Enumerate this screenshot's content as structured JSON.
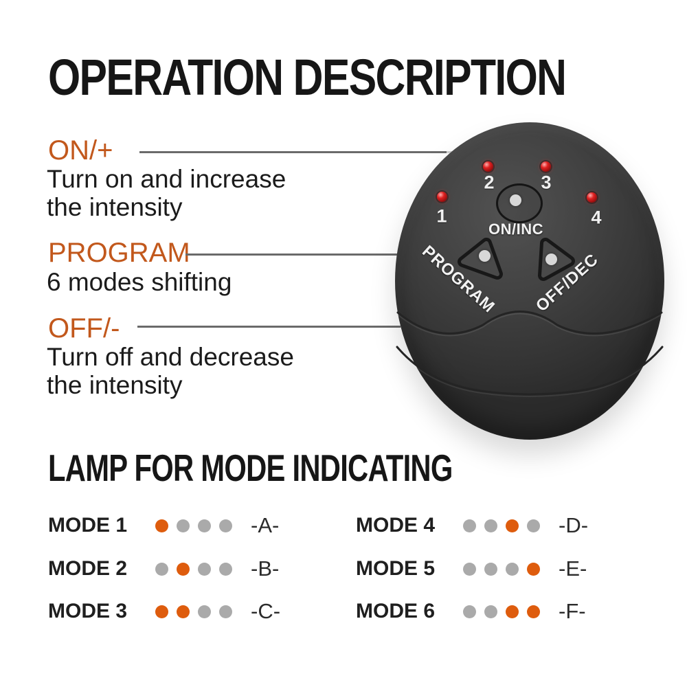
{
  "title": "OPERATION DESCRIPTION",
  "callouts": {
    "on": {
      "label": "ON/+",
      "line1": "Turn on and increase",
      "line2": "the intensity"
    },
    "program": {
      "label": "PROGRAM",
      "line1": "6 modes shifting"
    },
    "off": {
      "label": "OFF/-",
      "line1": "Turn off and decrease",
      "line2": "the intensity"
    }
  },
  "device": {
    "leds": [
      "1",
      "2",
      "3",
      "4"
    ],
    "on_button": "ON/INC",
    "program_button": "PROGRAM",
    "off_button": "OFF/DEC"
  },
  "lamp": {
    "title": "LAMP FOR MODE INDICATING",
    "modes": [
      {
        "name": "MODE 1",
        "dots": [
          "on",
          "off",
          "off",
          "off"
        ],
        "code": "-A-"
      },
      {
        "name": "MODE 2",
        "dots": [
          "off",
          "on",
          "off",
          "off"
        ],
        "code": "-B-"
      },
      {
        "name": "MODE 3",
        "dots": [
          "on",
          "on",
          "off",
          "off"
        ],
        "code": "-C-"
      },
      {
        "name": "MODE 4",
        "dots": [
          "off",
          "off",
          "on",
          "off"
        ],
        "code": "-D-"
      },
      {
        "name": "MODE 5",
        "dots": [
          "off",
          "off",
          "off",
          "on"
        ],
        "code": "-E-"
      },
      {
        "name": "MODE 6",
        "dots": [
          "off",
          "off",
          "on",
          "on"
        ],
        "code": "-F-"
      }
    ]
  },
  "colors": {
    "accent_orange": "#c2581c",
    "dot_on": "#de5c0d",
    "dot_off": "#aaaaaa",
    "led_red": "#e02020",
    "device_body": "#3d3d3d",
    "wire_gray": "#6a6a6a",
    "wire_light": "#d2d2d2"
  }
}
